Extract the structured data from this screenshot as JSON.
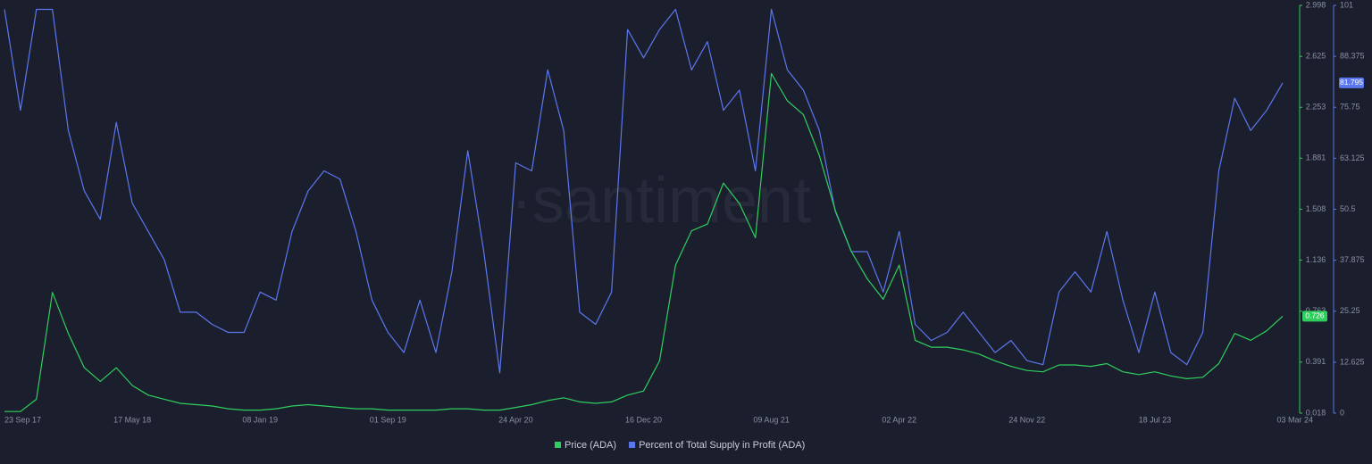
{
  "chart_data": {
    "type": "line",
    "watermark": "·santiment",
    "categories": [
      "23 Sep 17",
      null,
      null,
      null,
      null,
      null,
      null,
      null,
      "17 May 18",
      null,
      null,
      null,
      null,
      null,
      null,
      null,
      "08 Jan 19",
      null,
      null,
      null,
      null,
      null,
      null,
      null,
      "01 Sep 19",
      null,
      null,
      null,
      null,
      null,
      null,
      null,
      "24 Apr 20",
      null,
      null,
      null,
      null,
      null,
      null,
      null,
      "16 Dec 20",
      null,
      null,
      null,
      null,
      null,
      null,
      null,
      "09 Aug 21",
      null,
      null,
      null,
      null,
      null,
      null,
      null,
      "02 Apr 22",
      null,
      null,
      null,
      null,
      null,
      null,
      null,
      "24 Nov 22",
      null,
      null,
      null,
      null,
      null,
      null,
      null,
      "18 Jul 23",
      null,
      null,
      null,
      null,
      null,
      null,
      null,
      "03 Mar 24"
    ],
    "series": [
      {
        "name": "Price (ADA)",
        "color": "#2fcf5e",
        "axis": "y",
        "values": [
          0.03,
          0.03,
          0.12,
          0.9,
          0.6,
          0.35,
          0.25,
          0.35,
          0.22,
          0.15,
          0.12,
          0.09,
          0.08,
          0.07,
          0.05,
          0.04,
          0.04,
          0.05,
          0.07,
          0.08,
          0.07,
          0.06,
          0.05,
          0.05,
          0.04,
          0.04,
          0.04,
          0.04,
          0.05,
          0.05,
          0.04,
          0.04,
          0.06,
          0.08,
          0.11,
          0.13,
          0.1,
          0.09,
          0.1,
          0.15,
          0.18,
          0.4,
          1.1,
          1.35,
          1.4,
          1.7,
          1.55,
          1.3,
          2.5,
          2.3,
          2.2,
          1.9,
          1.5,
          1.2,
          1.0,
          0.85,
          1.1,
          0.55,
          0.5,
          0.5,
          0.48,
          0.45,
          0.4,
          0.36,
          0.33,
          0.32,
          0.37,
          0.37,
          0.36,
          0.38,
          0.32,
          0.3,
          0.32,
          0.29,
          0.27,
          0.28,
          0.38,
          0.6,
          0.55,
          0.62,
          0.726
        ]
      },
      {
        "name": "Percent of Total Supply in Profit (ADA)",
        "color": "#5b77ee",
        "axis": "y2",
        "values": [
          100,
          75,
          100,
          100,
          70,
          55,
          48,
          72,
          52,
          45,
          38,
          25,
          25,
          22,
          20,
          20,
          30,
          28,
          45,
          55,
          60,
          58,
          45,
          28,
          20,
          15,
          28,
          15,
          35,
          65,
          40,
          10,
          62,
          60,
          85,
          70,
          25,
          22,
          30,
          95,
          88,
          95,
          100,
          85,
          92,
          75,
          80,
          60,
          100,
          85,
          80,
          70,
          50,
          40,
          40,
          30,
          45,
          22,
          18,
          20,
          25,
          20,
          15,
          18,
          13,
          12,
          30,
          35,
          30,
          45,
          28,
          15,
          30,
          15,
          12,
          20,
          60,
          78,
          70,
          75,
          81.795
        ]
      }
    ],
    "ylim": [
      0.018,
      2.998
    ],
    "yticks": [
      0.018,
      0.391,
      0.763,
      1.136,
      1.508,
      1.881,
      2.253,
      2.625,
      2.998
    ],
    "y2lim": [
      0,
      101
    ],
    "y2ticks": [
      0,
      12.625,
      25.25,
      37.875,
      50.5,
      63.125,
      75.75,
      88.375,
      101
    ]
  }
}
